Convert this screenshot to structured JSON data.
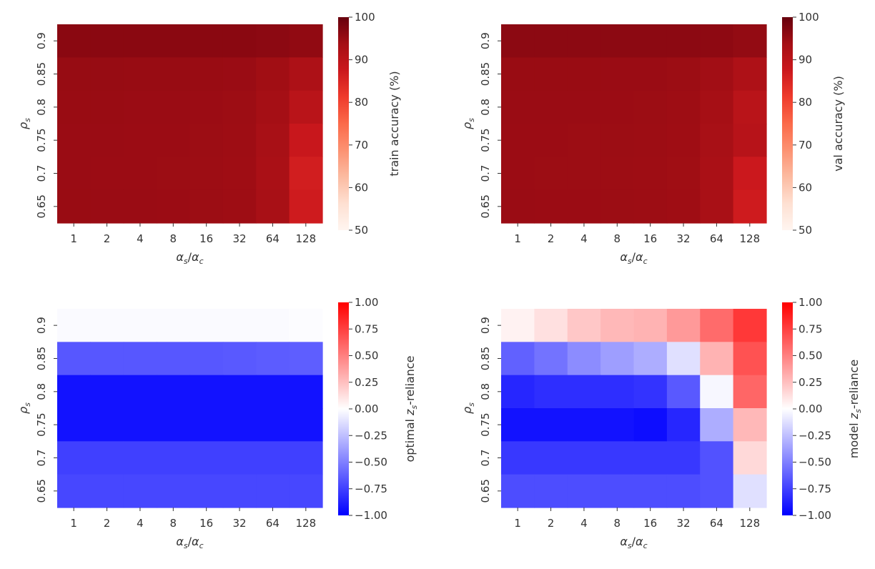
{
  "chart_data": [
    {
      "type": "heatmap",
      "name": "train-accuracy",
      "xlabel": "α_s/α_c",
      "ylabel": "ρ_s",
      "x_categories": [
        "1",
        "2",
        "4",
        "8",
        "16",
        "32",
        "64",
        "128"
      ],
      "y_categories": [
        "0.9",
        "0.85",
        "0.8",
        "0.75",
        "0.7",
        "0.65"
      ],
      "values": [
        [
          96.5,
          96.5,
          96.5,
          96.5,
          96.5,
          96.5,
          96.3,
          95.8
        ],
        [
          95.2,
          95.2,
          95.1,
          95.1,
          95.0,
          94.9,
          94.2,
          92.5
        ],
        [
          95.0,
          95.0,
          94.9,
          94.9,
          94.8,
          94.6,
          93.8,
          90.5
        ],
        [
          94.9,
          94.9,
          94.8,
          94.8,
          94.7,
          94.5,
          93.2,
          88.0
        ],
        [
          94.9,
          94.8,
          94.8,
          94.7,
          94.6,
          94.4,
          93.0,
          86.5
        ],
        [
          95.0,
          94.9,
          94.9,
          94.8,
          94.7,
          94.5,
          93.2,
          87.0
        ]
      ],
      "colorbar": {
        "label": "train accuracy (%)",
        "min": 50,
        "max": 100,
        "ticks": [
          "50",
          "60",
          "70",
          "80",
          "90",
          "100"
        ],
        "colormap": "Reds"
      }
    },
    {
      "type": "heatmap",
      "name": "val-accuracy",
      "xlabel": "α_s/α_c",
      "ylabel": "ρ_s",
      "x_categories": [
        "1",
        "2",
        "4",
        "8",
        "16",
        "32",
        "64",
        "128"
      ],
      "y_categories": [
        "0.9",
        "0.85",
        "0.8",
        "0.75",
        "0.7",
        "0.65"
      ],
      "values": [
        [
          96.3,
          96.3,
          96.3,
          96.3,
          96.3,
          96.3,
          96.1,
          95.6
        ],
        [
          95.0,
          95.0,
          95.0,
          94.9,
          94.9,
          94.7,
          94.1,
          92.2
        ],
        [
          94.9,
          94.9,
          94.9,
          94.8,
          94.7,
          94.5,
          93.6,
          90.5
        ],
        [
          94.8,
          94.8,
          94.7,
          94.7,
          94.6,
          94.4,
          93.2,
          90.8
        ],
        [
          94.8,
          94.7,
          94.7,
          94.6,
          94.5,
          94.3,
          93.0,
          87.5
        ],
        [
          94.9,
          94.8,
          94.8,
          94.7,
          94.6,
          94.4,
          93.1,
          87.0
        ]
      ],
      "colorbar": {
        "label": "val accuracy (%)",
        "min": 50,
        "max": 100,
        "ticks": [
          "50",
          "60",
          "70",
          "80",
          "90",
          "100"
        ],
        "colormap": "Reds"
      }
    },
    {
      "type": "heatmap",
      "name": "optimal-reliance",
      "xlabel": "α_s/α_c",
      "ylabel": "ρ_s",
      "x_categories": [
        "1",
        "2",
        "4",
        "8",
        "16",
        "32",
        "64",
        "128"
      ],
      "y_categories": [
        "0.9",
        "0.85",
        "0.8",
        "0.75",
        "0.7",
        "0.65"
      ],
      "values": [
        [
          -0.02,
          -0.02,
          -0.02,
          -0.02,
          -0.02,
          -0.02,
          -0.02,
          -0.01
        ],
        [
          -0.66,
          -0.66,
          -0.66,
          -0.66,
          -0.66,
          -0.65,
          -0.64,
          -0.63
        ],
        [
          -0.93,
          -0.93,
          -0.93,
          -0.93,
          -0.93,
          -0.93,
          -0.93,
          -0.93
        ],
        [
          -0.93,
          -0.93,
          -0.93,
          -0.93,
          -0.93,
          -0.93,
          -0.93,
          -0.93
        ],
        [
          -0.75,
          -0.75,
          -0.75,
          -0.75,
          -0.75,
          -0.75,
          -0.75,
          -0.75
        ],
        [
          -0.72,
          -0.72,
          -0.72,
          -0.72,
          -0.72,
          -0.72,
          -0.72,
          -0.72
        ]
      ],
      "colorbar": {
        "label": "optimal z_s-reliance",
        "min": -1,
        "max": 1,
        "ticks": [
          "−1.00",
          "−0.75",
          "−0.50",
          "−0.25",
          "0.00",
          "0.25",
          "0.50",
          "0.75",
          "1.00"
        ],
        "colormap": "bwr"
      }
    },
    {
      "type": "heatmap",
      "name": "model-reliance",
      "xlabel": "α_s/α_c",
      "ylabel": "ρ_s",
      "x_categories": [
        "1",
        "2",
        "4",
        "8",
        "16",
        "32",
        "64",
        "128"
      ],
      "y_categories": [
        "0.9",
        "0.85",
        "0.8",
        "0.75",
        "0.7",
        "0.65"
      ],
      "values": [
        [
          0.05,
          0.12,
          0.22,
          0.28,
          0.3,
          0.4,
          0.58,
          0.78
        ],
        [
          -0.62,
          -0.55,
          -0.45,
          -0.38,
          -0.32,
          -0.12,
          0.3,
          0.68
        ],
        [
          -0.85,
          -0.82,
          -0.82,
          -0.82,
          -0.8,
          -0.65,
          -0.03,
          0.6
        ],
        [
          -0.93,
          -0.93,
          -0.93,
          -0.93,
          -0.95,
          -0.85,
          -0.32,
          0.28
        ],
        [
          -0.78,
          -0.78,
          -0.78,
          -0.78,
          -0.78,
          -0.78,
          -0.68,
          0.15
        ],
        [
          -0.7,
          -0.7,
          -0.7,
          -0.7,
          -0.7,
          -0.7,
          -0.68,
          -0.12
        ]
      ],
      "colorbar": {
        "label": "model z_s-reliance",
        "min": -1,
        "max": 1,
        "ticks": [
          "−1.00",
          "−0.75",
          "−0.50",
          "−0.25",
          "0.00",
          "0.25",
          "0.50",
          "0.75",
          "1.00"
        ],
        "colormap": "bwr"
      }
    }
  ]
}
